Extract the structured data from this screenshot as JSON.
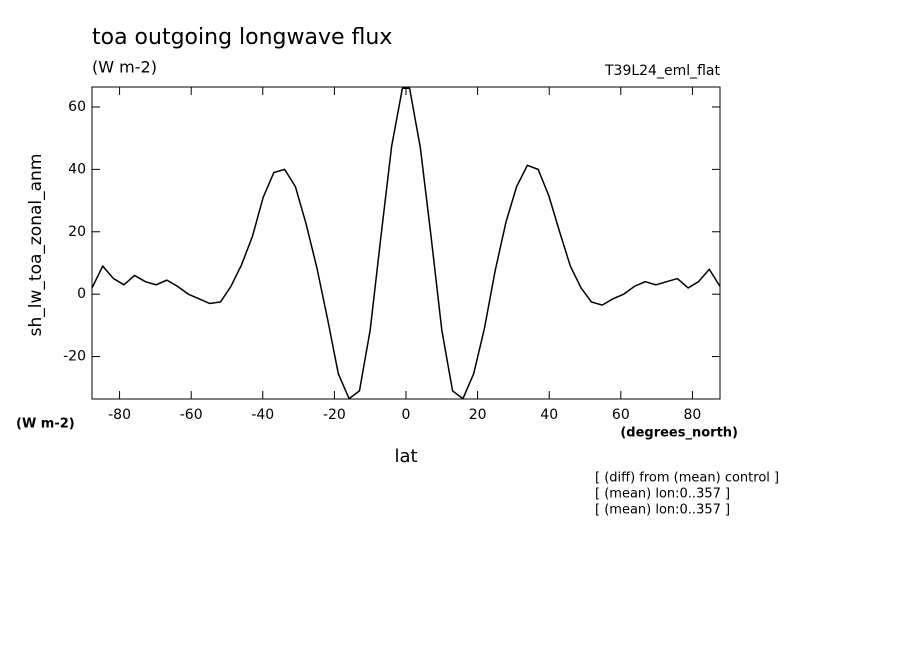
{
  "chart_data": {
    "type": "line",
    "title": "toa outgoing longwave flux",
    "subtitle": "(W m-2)",
    "experiment": "T39L24_eml_flat",
    "y_label": "sh_lw_toa_zonal_anm",
    "y_units": "(W m-2)",
    "x_label": "lat",
    "x_units": "(degrees_north)",
    "notes": [
      "[ (diff) from (mean) control ]",
      "[ (mean) lon:0..357 ]",
      "[ (mean) lon:0..357 ]"
    ],
    "x": [
      -87.7,
      -84.7,
      -81.7,
      -78.8,
      -75.8,
      -72.8,
      -69.8,
      -66.8,
      -63.8,
      -60.8,
      -57.8,
      -54.8,
      -51.8,
      -48.9,
      -45.9,
      -42.9,
      -39.9,
      -36.9,
      -33.9,
      -30.9,
      -27.9,
      -24.9,
      -21.9,
      -18.9,
      -15.9,
      -13.0,
      -10.0,
      -7.0,
      -4.0,
      -1.0,
      1.0,
      4.0,
      7.0,
      10.0,
      13.0,
      15.9,
      18.9,
      21.9,
      24.9,
      27.9,
      30.9,
      33.9,
      36.9,
      39.9,
      42.9,
      45.9,
      48.9,
      51.8,
      54.8,
      57.8,
      60.8,
      63.8,
      66.8,
      69.8,
      72.8,
      75.8,
      78.8,
      81.7,
      84.7,
      87.7
    ],
    "series": [
      {
        "color": "#000000",
        "values": [
          2,
          9,
          5,
          3,
          6,
          4,
          3,
          4.5,
          2.5,
          0,
          -1.5,
          -3,
          -2.5,
          2.5,
          9.5,
          18.5,
          31,
          39,
          40,
          34.5,
          22.5,
          8.5,
          -8,
          -25.5,
          -33.5,
          -31,
          -11.5,
          18.5,
          47.5,
          66,
          66,
          47,
          18.5,
          -11.5,
          -31,
          -33.5,
          -25.5,
          -11,
          7.5,
          23,
          34.5,
          41.3,
          40,
          31.5,
          20,
          9,
          2,
          -2.5,
          -3.5,
          -1.5,
          0,
          2.5,
          4,
          3,
          4,
          5,
          2,
          4,
          8,
          2.5
        ]
      }
    ],
    "xlim": [
      -87.7,
      87.7
    ],
    "ylim": [
      -33.6,
      66.4
    ],
    "xticks": [
      -80,
      -60,
      -40,
      -20,
      0,
      20,
      40,
      60,
      80
    ],
    "yticks": [
      -20,
      0,
      20,
      40,
      60
    ]
  }
}
